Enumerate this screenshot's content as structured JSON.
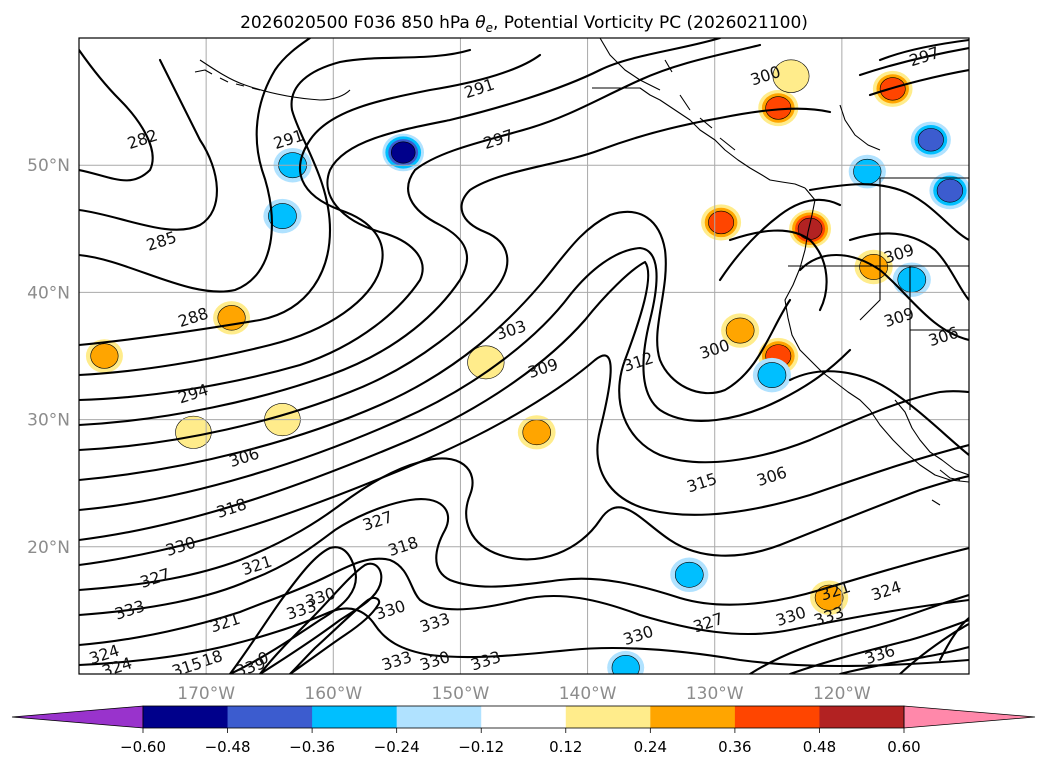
{
  "title": "2026020500 F036 850 hPa θe, Potential Vorticity PC (2026021100)",
  "title_parts": {
    "prefix": "2026020500 F036 850 hPa ",
    "theta": "θ",
    "sub": "e",
    "suffix": ", Potential Vorticity PC (2026021100)"
  },
  "map": {
    "lon_range": [
      -180,
      -110
    ],
    "lat_range": [
      10,
      60
    ],
    "lon_ticks": [
      {
        "value": -170,
        "label": "170°W"
      },
      {
        "value": -160,
        "label": "160°W"
      },
      {
        "value": -150,
        "label": "150°W"
      },
      {
        "value": -140,
        "label": "140°W"
      },
      {
        "value": -130,
        "label": "130°W"
      },
      {
        "value": -120,
        "label": "120°W"
      }
    ],
    "lat_ticks": [
      {
        "value": 20,
        "label": "20°N"
      },
      {
        "value": 30,
        "label": "30°N"
      },
      {
        "value": 40,
        "label": "40°N"
      },
      {
        "value": 50,
        "label": "50°N"
      }
    ],
    "contour_labels": [
      {
        "text": "282",
        "lon": -175,
        "lat": 52
      },
      {
        "text": "285",
        "lon": -173.5,
        "lat": 44
      },
      {
        "text": "288",
        "lon": -171,
        "lat": 38
      },
      {
        "text": "291",
        "lon": -163.5,
        "lat": 52
      },
      {
        "text": "291",
        "lon": -148.5,
        "lat": 56
      },
      {
        "text": "294",
        "lon": -171,
        "lat": 32
      },
      {
        "text": "297",
        "lon": -147,
        "lat": 52
      },
      {
        "text": "303",
        "lon": -146,
        "lat": 37
      },
      {
        "text": "309",
        "lon": -143.5,
        "lat": 34
      },
      {
        "text": "306",
        "lon": -167,
        "lat": 27
      },
      {
        "text": "312",
        "lon": -136,
        "lat": 34.5
      },
      {
        "text": "300",
        "lon": -130,
        "lat": 35.5
      },
      {
        "text": "315",
        "lon": -131,
        "lat": 25
      },
      {
        "text": "306",
        "lon": -125.5,
        "lat": 25.5
      },
      {
        "text": "309",
        "lon": -115.5,
        "lat": 43
      },
      {
        "text": "309",
        "lon": -115.5,
        "lat": 38
      },
      {
        "text": "306",
        "lon": -112,
        "lat": 36.5
      },
      {
        "text": "300",
        "lon": -126,
        "lat": 57
      },
      {
        "text": "297",
        "lon": -113.5,
        "lat": 58.5
      },
      {
        "text": "318",
        "lon": -168,
        "lat": 23
      },
      {
        "text": "318",
        "lon": -154.5,
        "lat": 20
      },
      {
        "text": "327",
        "lon": -156.5,
        "lat": 22
      },
      {
        "text": "330",
        "lon": -172,
        "lat": 20
      },
      {
        "text": "327",
        "lon": -174,
        "lat": 17.5
      },
      {
        "text": "321",
        "lon": -166,
        "lat": 18.5
      },
      {
        "text": "333",
        "lon": -176,
        "lat": 15
      },
      {
        "text": "321",
        "lon": -168.5,
        "lat": 14
      },
      {
        "text": "330",
        "lon": -161,
        "lat": 16
      },
      {
        "text": "333",
        "lon": -162.5,
        "lat": 15
      },
      {
        "text": "330",
        "lon": -155.5,
        "lat": 15
      },
      {
        "text": "333",
        "lon": -152,
        "lat": 14
      },
      {
        "text": "330",
        "lon": -152,
        "lat": 11
      },
      {
        "text": "333",
        "lon": -155,
        "lat": 11
      },
      {
        "text": "330",
        "lon": -136,
        "lat": 13
      },
      {
        "text": "327",
        "lon": -130.5,
        "lat": 14
      },
      {
        "text": "333",
        "lon": -148,
        "lat": 11
      },
      {
        "text": "330",
        "lon": -124,
        "lat": 14.5
      },
      {
        "text": "333",
        "lon": -121,
        "lat": 14.5
      },
      {
        "text": "321",
        "lon": -120.5,
        "lat": 16.5
      },
      {
        "text": "324",
        "lon": -116.5,
        "lat": 16.5
      },
      {
        "text": "336",
        "lon": -117,
        "lat": 11.5
      },
      {
        "text": "324",
        "lon": -178,
        "lat": 11.5
      },
      {
        "text": "324",
        "lon": -177,
        "lat": 10.5
      },
      {
        "text": "315",
        "lon": -171.5,
        "lat": 10.5
      },
      {
        "text": "339",
        "lon": -166.5,
        "lat": 10.5
      },
      {
        "text": "18",
        "lon": -169.5,
        "lat": 11.2
      },
      {
        "text": "0",
        "lon": -165.5,
        "lat": 11.2
      }
    ],
    "pv_anomalies": [
      {
        "lon": -154.5,
        "lat": 51,
        "value": -0.48
      },
      {
        "lon": -163.2,
        "lat": 50,
        "value": -0.3
      },
      {
        "lon": -164,
        "lat": 46,
        "value": -0.3
      },
      {
        "lon": -132,
        "lat": 17.8,
        "value": -0.3
      },
      {
        "lon": -137,
        "lat": 10.5,
        "value": -0.24
      },
      {
        "lon": -129.5,
        "lat": 45.5,
        "value": 0.4
      },
      {
        "lon": -125,
        "lat": 54.5,
        "value": 0.4
      },
      {
        "lon": -144,
        "lat": 29,
        "value": 0.28
      },
      {
        "lon": -148,
        "lat": 34.5,
        "value": 0.22
      },
      {
        "lon": -125,
        "lat": 35,
        "value": 0.4
      },
      {
        "lon": -128,
        "lat": 37,
        "value": 0.3
      },
      {
        "lon": -116,
        "lat": 56,
        "value": 0.38
      },
      {
        "lon": -113,
        "lat": 52,
        "value": -0.4
      },
      {
        "lon": -111.5,
        "lat": 48,
        "value": -0.45
      },
      {
        "lon": -122.5,
        "lat": 45,
        "value": 0.5
      },
      {
        "lon": -125.5,
        "lat": 33.5,
        "value": -0.3
      },
      {
        "lon": -168,
        "lat": 38,
        "value": 0.24
      },
      {
        "lon": -178,
        "lat": 35,
        "value": 0.24
      },
      {
        "lon": -164,
        "lat": 30,
        "value": 0.18
      },
      {
        "lon": -171,
        "lat": 29,
        "value": 0.18
      },
      {
        "lon": -117.5,
        "lat": 42,
        "value": 0.3
      },
      {
        "lon": -114.5,
        "lat": 41,
        "value": -0.3
      },
      {
        "lon": -118,
        "lat": 49.5,
        "value": -0.25
      },
      {
        "lon": -121,
        "lat": 16,
        "value": 0.3
      },
      {
        "lon": -124,
        "lat": 57,
        "value": 0.2
      }
    ]
  },
  "colorbar": {
    "ticks": [
      "−0.60",
      "−0.48",
      "−0.36",
      "−0.24",
      "−0.12",
      "0.12",
      "0.24",
      "0.36",
      "0.48",
      "0.60"
    ],
    "under_color": "#9933cc",
    "over_color": "#ff88aa",
    "colors": [
      "#00008b",
      "#3c5ccf",
      "#00bfff",
      "#b0e2ff",
      "#ffffff",
      "#ffec8b",
      "#ffa500",
      "#ff4500",
      "#b22222"
    ]
  }
}
